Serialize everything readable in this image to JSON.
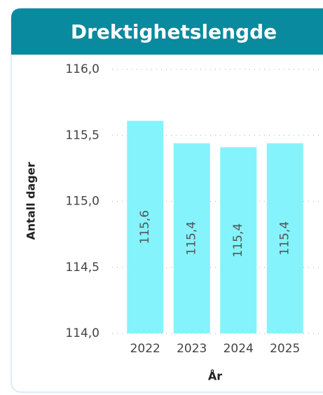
{
  "chart_data": {
    "type": "bar",
    "title": "Drektighetslengde",
    "x_label": "År",
    "y_label": "Antall dager",
    "categories": [
      "2022",
      "2023",
      "2024",
      "2025"
    ],
    "values": [
      115.61,
      115.44,
      115.41,
      115.44
    ],
    "value_labels": [
      "115,6",
      "115,4",
      "115,4",
      "115,4"
    ],
    "color": "#85f3fb",
    "ylim": [
      114,
      116
    ],
    "yticks": [
      {
        "value": 114,
        "label": "114,0"
      },
      {
        "value": 114.5,
        "label": "114,5"
      },
      {
        "value": 115,
        "label": "115,0"
      },
      {
        "value": 115.5,
        "label": "115,5"
      },
      {
        "value": 116,
        "label": "116,0"
      }
    ],
    "grid": true
  }
}
